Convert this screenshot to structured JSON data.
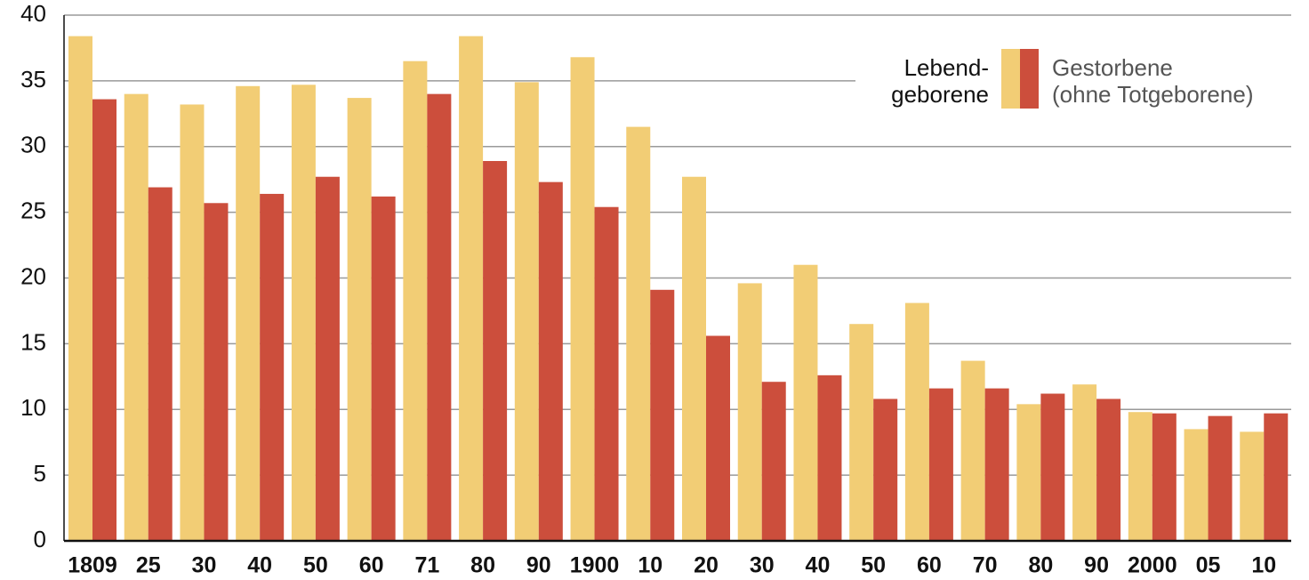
{
  "chart_data": {
    "type": "bar",
    "categories": [
      "1809",
      "25",
      "30",
      "40",
      "50",
      "60",
      "71",
      "80",
      "90",
      "1900",
      "10",
      "20",
      "30",
      "40",
      "50",
      "60",
      "70",
      "80",
      "90",
      "2000",
      "05",
      "10"
    ],
    "series": [
      {
        "name": "Lebend-\ngeborene",
        "color": "#f2cd75",
        "values": [
          38.4,
          34.0,
          33.2,
          34.6,
          34.7,
          33.7,
          36.5,
          38.4,
          34.9,
          36.8,
          31.5,
          27.7,
          19.6,
          21.0,
          16.5,
          18.1,
          13.7,
          10.4,
          11.9,
          9.8,
          8.5,
          8.3
        ]
      },
      {
        "name": "Gestorbene\n(ohne Totgeborene)",
        "color": "#cc4e3c",
        "values": [
          33.6,
          26.9,
          25.7,
          26.4,
          27.7,
          26.2,
          34.0,
          28.9,
          27.3,
          25.4,
          19.1,
          15.6,
          12.1,
          12.6,
          10.8,
          11.6,
          11.6,
          11.2,
          10.8,
          9.7,
          9.5,
          9.7
        ]
      }
    ],
    "ylim": [
      0,
      40
    ],
    "yticks": [
      0,
      5,
      10,
      15,
      20,
      25,
      30,
      35,
      40
    ],
    "grid": true,
    "legend": "top-right"
  }
}
